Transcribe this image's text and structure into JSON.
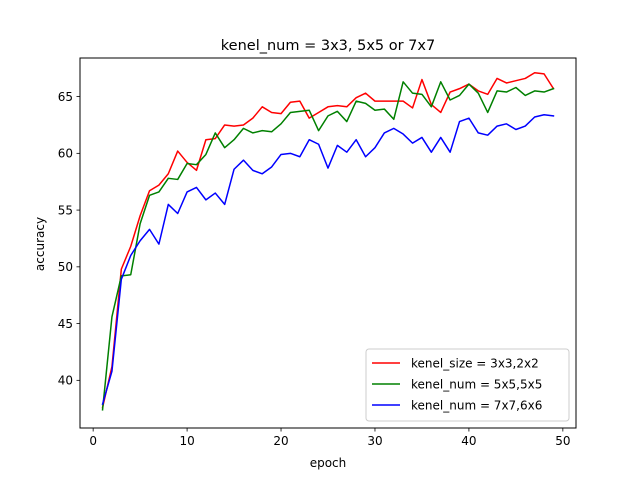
{
  "chart_data": {
    "type": "line",
    "title": "kenel_num = 3x3, 5x5 or 7x7",
    "xlabel": "epoch",
    "ylabel": "accuracy",
    "xlim": [
      -1.4,
      51.4
    ],
    "ylim": [
      35.8,
      68.4
    ],
    "xticks": [
      0,
      10,
      20,
      30,
      40,
      50
    ],
    "yticks": [
      40,
      45,
      50,
      55,
      60,
      65
    ],
    "grid": false,
    "legend_position": "lower-right",
    "x": [
      1,
      2,
      3,
      4,
      5,
      6,
      7,
      8,
      9,
      10,
      11,
      12,
      13,
      14,
      15,
      16,
      17,
      18,
      19,
      20,
      21,
      22,
      23,
      24,
      25,
      26,
      27,
      28,
      29,
      30,
      31,
      32,
      33,
      34,
      35,
      36,
      37,
      38,
      39,
      40,
      41,
      42,
      43,
      44,
      45,
      46,
      47,
      48,
      49
    ],
    "series": [
      {
        "name": "kenel_size = 3x3,2x2",
        "color": "#ff0000",
        "values": [
          37.6,
          41.2,
          49.8,
          51.8,
          54.5,
          56.7,
          57.2,
          58.2,
          60.2,
          59.2,
          58.5,
          61.2,
          61.3,
          62.5,
          62.4,
          62.5,
          63.1,
          64.1,
          63.6,
          63.5,
          64.5,
          64.6,
          63.1,
          63.6,
          64.1,
          64.2,
          64.1,
          64.9,
          65.3,
          64.6,
          64.6,
          64.6,
          64.6,
          64.0,
          66.5,
          64.3,
          63.6,
          65.4,
          65.7,
          66.1,
          65.5,
          65.2,
          66.6,
          66.2,
          66.4,
          66.6,
          67.1,
          67.0,
          65.7
        ]
      },
      {
        "name": "kenel_num = 5x5,5x5",
        "color": "#008000",
        "values": [
          37.4,
          45.6,
          49.2,
          49.3,
          53.8,
          56.3,
          56.6,
          57.8,
          57.7,
          59.1,
          59.0,
          59.9,
          61.8,
          60.5,
          61.2,
          62.2,
          61.8,
          62.0,
          61.9,
          62.6,
          63.6,
          63.7,
          63.8,
          62.0,
          63.3,
          63.7,
          62.8,
          64.6,
          64.4,
          63.8,
          63.9,
          63.0,
          66.3,
          65.3,
          65.2,
          64.1,
          66.3,
          64.7,
          65.1,
          66.1,
          65.3,
          63.6,
          65.5,
          65.4,
          65.8,
          65.1,
          65.5,
          65.4,
          65.7
        ]
      },
      {
        "name": "kenel_num = 7x7,6x6",
        "color": "#0000ff",
        "values": [
          37.9,
          40.8,
          48.9,
          51.0,
          52.3,
          53.3,
          52.0,
          55.5,
          54.7,
          56.6,
          57.0,
          55.9,
          56.5,
          55.5,
          58.6,
          59.4,
          58.5,
          58.2,
          58.8,
          59.9,
          60.0,
          59.7,
          61.2,
          60.8,
          58.7,
          60.7,
          60.1,
          61.2,
          59.7,
          60.5,
          61.8,
          62.2,
          61.7,
          60.9,
          61.4,
          60.1,
          61.4,
          60.1,
          62.8,
          63.1,
          61.8,
          61.6,
          62.4,
          62.6,
          62.1,
          62.4,
          63.2,
          63.4,
          63.3
        ]
      }
    ]
  }
}
